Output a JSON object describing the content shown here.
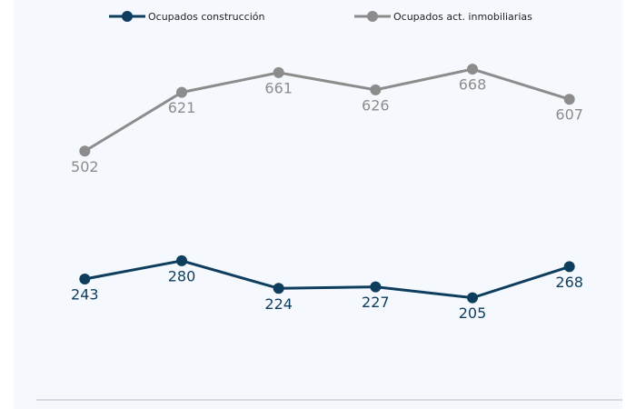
{
  "chart_data": {
    "type": "line",
    "categories": [
      null,
      null,
      null,
      null,
      null,
      null
    ],
    "series": [
      {
        "name": "Ocupados construcción",
        "color": "#0e3d5e",
        "values": [
          243,
          280,
          224,
          227,
          205,
          268
        ]
      },
      {
        "name": "Ocupados act. inmobiliarias",
        "color": "#8c8c8c",
        "values": [
          502,
          621,
          661,
          626,
          668,
          607
        ]
      }
    ],
    "ylim": [
      0,
      808
    ],
    "legend": "top"
  }
}
